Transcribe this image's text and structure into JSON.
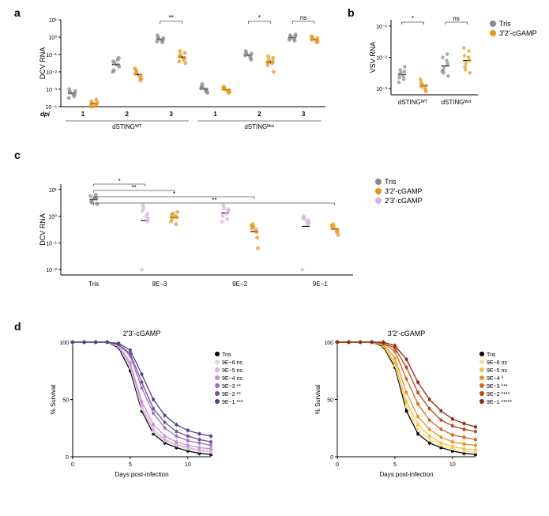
{
  "panel_a": {
    "label": "a",
    "ylabel": "DCV RNA",
    "xlabel_dpi": "dpi",
    "type": "scatter",
    "y_ticks": [
      "10⁻⁴",
      "10⁻³",
      "10⁻²",
      "10⁻¹",
      "10⁰",
      "10¹"
    ],
    "y_range": [
      -4,
      1
    ],
    "groups": [
      "dSTINGᵂᵀ",
      "dSTINGᴹᵘᵗ"
    ],
    "dpi_values": [
      "1",
      "2",
      "3",
      "1",
      "2",
      "3"
    ],
    "sig_labels": [
      "**",
      "*",
      "ns"
    ],
    "colors": {
      "tris": "#888888",
      "cgamp": "#e8941a"
    },
    "data": {
      "wt_1_tris": [
        -3.2,
        -3.3,
        -3.15,
        -3.4,
        -3.0,
        -3.25,
        -3.5,
        -3.1
      ],
      "wt_1_cg": [
        -3.8,
        -3.9,
        -4.0,
        -3.6,
        -3.7,
        -3.85,
        -3.95,
        -3.75
      ],
      "wt_2_tris": [
        -1.5,
        -1.3,
        -1.9,
        -1.6,
        -1.4,
        -1.2,
        -2.0,
        -1.7
      ],
      "wt_2_cg": [
        -2.0,
        -2.3,
        -1.9,
        -2.5,
        -2.1,
        -2.2,
        -1.8,
        -2.4
      ],
      "wt_3_tris": [
        -0.1,
        -0.2,
        0.0,
        -0.3,
        0.1,
        -0.15,
        -0.25,
        -0.05
      ],
      "wt_3_cg": [
        -1.0,
        -1.3,
        -0.8,
        -1.2,
        -1.1,
        -0.9,
        -1.4,
        -1.5
      ],
      "mut_1_tris": [
        -2.9,
        -3.1,
        -2.7,
        -3.0,
        -2.85,
        -3.15,
        -2.95,
        -3.2
      ],
      "mut_1_cg": [
        -3.0,
        -3.1,
        -2.9,
        -3.2,
        -2.85,
        -3.05,
        -2.95,
        -3.15
      ],
      "mut_2_tris": [
        -1.0,
        -1.1,
        -0.9,
        -1.2,
        -0.8,
        -1.3,
        -1.05,
        -0.95
      ],
      "mut_2_cg": [
        -1.3,
        -1.5,
        -1.1,
        -1.4,
        -1.6,
        -1.2,
        -1.45,
        -2.0
      ],
      "mut_3_tris": [
        0.0,
        -0.1,
        0.1,
        -0.2,
        -0.05,
        0.05,
        -0.15,
        0.15
      ],
      "mut_3_cg": [
        -0.1,
        -0.2,
        0.0,
        -0.3,
        -0.15,
        -0.05,
        0.05,
        -0.25
      ]
    }
  },
  "panel_b": {
    "label": "b",
    "ylabel": "VSV RNA",
    "type": "scatter",
    "y_ticks": [
      "10⁻³",
      "10⁻²",
      "10⁻¹"
    ],
    "y_range": [
      -3.2,
      -0.8
    ],
    "groups": [
      "dSTINGᵂᵀ",
      "dSTINGᴹᵘᵗ"
    ],
    "sig_labels": [
      "*",
      "ns"
    ],
    "colors": {
      "tris": "#888888",
      "cgamp": "#e8941a"
    },
    "legend": [
      "Tris",
      "3'2'-cGAMP"
    ],
    "data": {
      "wt_tris": [
        -2.5,
        -2.6,
        -2.4,
        -2.7,
        -2.55,
        -2.45,
        -2.65,
        -2.3,
        -2.8
      ],
      "wt_cg": [
        -2.9,
        -3.0,
        -2.85,
        -3.05,
        -2.95,
        -3.1,
        -2.8,
        -2.9,
        -2.7
      ],
      "mut_tris": [
        -2.3,
        -2.1,
        -2.5,
        -1.9,
        -2.4,
        -2.2,
        -2.0,
        -2.6,
        -2.45
      ],
      "mut_cg": [
        -2.2,
        -2.0,
        -2.4,
        -1.8,
        -2.3,
        -2.1,
        -1.95,
        -2.5,
        -1.7
      ]
    }
  },
  "panel_c": {
    "label": "c",
    "ylabel": "DCV RNA",
    "type": "scatter",
    "y_ticks": [
      "10⁻²",
      "10⁻¹",
      "10⁰",
      "10¹"
    ],
    "y_range": [
      -2.2,
      1.2
    ],
    "x_groups": [
      "Tris",
      "9E−3",
      "9E−2",
      "9E−1"
    ],
    "sig_labels": [
      "*",
      "**",
      "*",
      "**"
    ],
    "legend": [
      "Tris",
      "3'2'-cGAMP",
      "2'3'-cGAMP"
    ],
    "colors": {
      "tris": "#888888",
      "c32": "#e8941a",
      "c23": "#d8b3d8"
    },
    "data": {
      "tris_tris": [
        0.6,
        0.7,
        0.5,
        0.8,
        0.55,
        0.65,
        0.75,
        0.45
      ],
      "e3_23": [
        0.3,
        0.0,
        0.4,
        -0.2,
        0.2,
        0.1,
        -2.0,
        -0.1
      ],
      "e3_32": [
        0.1,
        0.0,
        -0.1,
        -0.3,
        0.05,
        -0.05,
        -0.2,
        0.15
      ],
      "e2_23": [
        0.3,
        0.1,
        0.4,
        -0.1,
        0.0,
        0.2,
        -0.2,
        0.25
      ],
      "e2_32": [
        -0.4,
        -0.5,
        -0.3,
        -0.6,
        -0.45,
        -0.8,
        -0.35,
        -1.2
      ],
      "e1_23": [
        -0.1,
        -0.2,
        0.0,
        -0.3,
        -0.05,
        -0.15,
        -2.0,
        -0.25
      ],
      "e1_32": [
        -0.4,
        -0.5,
        -0.3,
        -0.6,
        -0.45,
        -0.55,
        -0.35,
        -0.7
      ]
    }
  },
  "panel_d": {
    "label": "d",
    "ylabel": "% Survival",
    "xlabel": "Days post-infection",
    "type": "line",
    "titles": [
      "2'3'-cGAMP",
      "3'2'-cGAMP"
    ],
    "x_range": [
      0,
      12
    ],
    "y_range": [
      0,
      100
    ],
    "x_ticks": [
      "0",
      "5",
      "10"
    ],
    "y_ticks": [
      "0",
      "50",
      "100"
    ],
    "legend_23": [
      {
        "label": "Tris",
        "sig": "",
        "color": "#000000"
      },
      {
        "label": "9E−6",
        "sig": "ns",
        "color": "#e8d0e8"
      },
      {
        "label": "9E−5",
        "sig": "ns",
        "color": "#d8b0d8"
      },
      {
        "label": "9E−4",
        "sig": "ns",
        "color": "#c090d0"
      },
      {
        "label": "9E−3",
        "sig": "**",
        "color": "#a070c0"
      },
      {
        "label": "9E−2",
        "sig": "**",
        "color": "#7050a0"
      },
      {
        "label": "9E−1",
        "sig": "***",
        "color": "#504080"
      }
    ],
    "legend_32": [
      {
        "label": "Tris",
        "sig": "",
        "color": "#000000"
      },
      {
        "label": "9E−6",
        "sig": "ns",
        "color": "#f8e088"
      },
      {
        "label": "9E−5",
        "sig": "ns",
        "color": "#f0c050"
      },
      {
        "label": "9E−4",
        "sig": "*",
        "color": "#e8941a"
      },
      {
        "label": "9E−3",
        "sig": "***",
        "color": "#d06818"
      },
      {
        "label": "9E−2",
        "sig": "****",
        "color": "#b04818"
      },
      {
        "label": "9E−1",
        "sig": "*****",
        "color": "#902818"
      }
    ],
    "curves_23": {
      "tris": [
        [
          0,
          100
        ],
        [
          1,
          100
        ],
        [
          2,
          100
        ],
        [
          3,
          100
        ],
        [
          4,
          95
        ],
        [
          5,
          75
        ],
        [
          6,
          40
        ],
        [
          7,
          20
        ],
        [
          8,
          12
        ],
        [
          9,
          8
        ],
        [
          10,
          5
        ],
        [
          11,
          3
        ],
        [
          12,
          2
        ]
      ],
      "e6": [
        [
          0,
          100
        ],
        [
          1,
          100
        ],
        [
          2,
          100
        ],
        [
          3,
          100
        ],
        [
          4,
          96
        ],
        [
          5,
          78
        ],
        [
          6,
          42
        ],
        [
          7,
          22
        ],
        [
          8,
          14
        ],
        [
          9,
          10
        ],
        [
          10,
          7
        ],
        [
          11,
          5
        ],
        [
          12,
          4
        ]
      ],
      "e5": [
        [
          0,
          100
        ],
        [
          1,
          100
        ],
        [
          2,
          100
        ],
        [
          3,
          100
        ],
        [
          4,
          96
        ],
        [
          5,
          80
        ],
        [
          6,
          44
        ],
        [
          7,
          24
        ],
        [
          8,
          15
        ],
        [
          9,
          11
        ],
        [
          10,
          8
        ],
        [
          11,
          6
        ],
        [
          12,
          5
        ]
      ],
      "e4": [
        [
          0,
          100
        ],
        [
          1,
          100
        ],
        [
          2,
          100
        ],
        [
          3,
          100
        ],
        [
          4,
          97
        ],
        [
          5,
          82
        ],
        [
          6,
          48
        ],
        [
          7,
          28
        ],
        [
          8,
          18
        ],
        [
          9,
          13
        ],
        [
          10,
          10
        ],
        [
          11,
          8
        ],
        [
          12,
          7
        ]
      ],
      "e3": [
        [
          0,
          100
        ],
        [
          1,
          100
        ],
        [
          2,
          100
        ],
        [
          3,
          100
        ],
        [
          4,
          98
        ],
        [
          5,
          88
        ],
        [
          6,
          60
        ],
        [
          7,
          38
        ],
        [
          8,
          25
        ],
        [
          9,
          18
        ],
        [
          10,
          14
        ],
        [
          11,
          12
        ],
        [
          12,
          10
        ]
      ],
      "e2": [
        [
          0,
          100
        ],
        [
          1,
          100
        ],
        [
          2,
          100
        ],
        [
          3,
          100
        ],
        [
          4,
          98
        ],
        [
          5,
          90
        ],
        [
          6,
          65
        ],
        [
          7,
          42
        ],
        [
          8,
          30
        ],
        [
          9,
          22
        ],
        [
          10,
          18
        ],
        [
          11,
          15
        ],
        [
          12,
          13
        ]
      ],
      "e1": [
        [
          0,
          100
        ],
        [
          1,
          100
        ],
        [
          2,
          100
        ],
        [
          3,
          100
        ],
        [
          4,
          99
        ],
        [
          5,
          93
        ],
        [
          6,
          72
        ],
        [
          7,
          50
        ],
        [
          8,
          36
        ],
        [
          9,
          28
        ],
        [
          10,
          23
        ],
        [
          11,
          20
        ],
        [
          12,
          18
        ]
      ]
    },
    "curves_32": {
      "tris": [
        [
          0,
          100
        ],
        [
          1,
          100
        ],
        [
          2,
          100
        ],
        [
          3,
          100
        ],
        [
          4,
          96
        ],
        [
          5,
          78
        ],
        [
          6,
          40
        ],
        [
          7,
          20
        ],
        [
          8,
          12
        ],
        [
          9,
          8
        ],
        [
          10,
          5
        ],
        [
          11,
          3
        ],
        [
          12,
          2
        ]
      ],
      "e6": [
        [
          0,
          100
        ],
        [
          1,
          100
        ],
        [
          2,
          100
        ],
        [
          3,
          100
        ],
        [
          4,
          97
        ],
        [
          5,
          80
        ],
        [
          6,
          44
        ],
        [
          7,
          24
        ],
        [
          8,
          15
        ],
        [
          9,
          10
        ],
        [
          10,
          7
        ],
        [
          11,
          5
        ],
        [
          12,
          4
        ]
      ],
      "e5": [
        [
          0,
          100
        ],
        [
          1,
          100
        ],
        [
          2,
          100
        ],
        [
          3,
          100
        ],
        [
          4,
          97
        ],
        [
          5,
          82
        ],
        [
          6,
          48
        ],
        [
          7,
          28
        ],
        [
          8,
          18
        ],
        [
          9,
          12
        ],
        [
          10,
          9
        ],
        [
          11,
          7
        ],
        [
          12,
          6
        ]
      ],
      "e4": [
        [
          0,
          100
        ],
        [
          1,
          100
        ],
        [
          2,
          100
        ],
        [
          3,
          100
        ],
        [
          4,
          98
        ],
        [
          5,
          86
        ],
        [
          6,
          56
        ],
        [
          7,
          35
        ],
        [
          8,
          24
        ],
        [
          9,
          17
        ],
        [
          10,
          13
        ],
        [
          11,
          11
        ],
        [
          12,
          10
        ]
      ],
      "e3": [
        [
          0,
          100
        ],
        [
          1,
          100
        ],
        [
          2,
          100
        ],
        [
          3,
          100
        ],
        [
          4,
          99
        ],
        [
          5,
          92
        ],
        [
          6,
          68
        ],
        [
          7,
          46
        ],
        [
          8,
          32
        ],
        [
          9,
          24
        ],
        [
          10,
          19
        ],
        [
          11,
          17
        ],
        [
          12,
          15
        ]
      ],
      "e2": [
        [
          0,
          100
        ],
        [
          1,
          100
        ],
        [
          2,
          100
        ],
        [
          3,
          100
        ],
        [
          4,
          99
        ],
        [
          5,
          95
        ],
        [
          6,
          78
        ],
        [
          7,
          56
        ],
        [
          8,
          42
        ],
        [
          9,
          32
        ],
        [
          10,
          27
        ],
        [
          11,
          24
        ],
        [
          12,
          22
        ]
      ],
      "e1": [
        [
          0,
          100
        ],
        [
          1,
          100
        ],
        [
          2,
          100
        ],
        [
          3,
          100
        ],
        [
          4,
          100
        ],
        [
          5,
          97
        ],
        [
          6,
          85
        ],
        [
          7,
          65
        ],
        [
          8,
          50
        ],
        [
          9,
          40
        ],
        [
          10,
          33
        ],
        [
          11,
          29
        ],
        [
          12,
          26
        ]
      ]
    }
  }
}
